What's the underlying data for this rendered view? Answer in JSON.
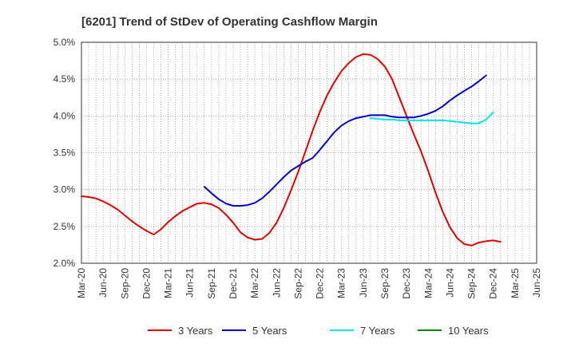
{
  "chart_data": {
    "type": "line",
    "title": "[6201]  Trend of StDev of Operating Cashflow Margin",
    "xlabel": "",
    "ylabel": "",
    "ylim": [
      2.0,
      5.0
    ],
    "y_ticks": [
      "2.0%",
      "2.5%",
      "3.0%",
      "3.5%",
      "4.0%",
      "4.5%",
      "5.0%"
    ],
    "y_tick_values": [
      2.0,
      2.5,
      3.0,
      3.5,
      4.0,
      4.5,
      5.0
    ],
    "x_ticks": [
      "Mar-20",
      "Jun-20",
      "Sep-20",
      "Dec-20",
      "Mar-21",
      "Jun-21",
      "Sep-21",
      "Dec-21",
      "Mar-22",
      "Jun-22",
      "Sep-22",
      "Dec-22",
      "Mar-23",
      "Jun-23",
      "Sep-23",
      "Dec-23",
      "Mar-24",
      "Jun-24",
      "Sep-24",
      "Dec-24",
      "Mar-25",
      "Jun-25"
    ],
    "grid": true,
    "legend_position": "bottom",
    "series": [
      {
        "name": "3 Years",
        "color": "#dd0000",
        "points": [
          [
            0,
            2.91
          ],
          [
            1,
            2.9
          ],
          [
            2,
            2.88
          ],
          [
            3,
            2.84
          ],
          [
            4,
            2.79
          ],
          [
            5,
            2.73
          ],
          [
            6,
            2.65
          ],
          [
            7,
            2.57
          ],
          [
            8,
            2.5
          ],
          [
            9,
            2.44
          ],
          [
            10,
            2.39
          ],
          [
            11,
            2.46
          ],
          [
            12,
            2.56
          ],
          [
            13,
            2.64
          ],
          [
            14,
            2.71
          ],
          [
            15,
            2.76
          ],
          [
            16,
            2.81
          ],
          [
            17,
            2.82
          ],
          [
            18,
            2.8
          ],
          [
            19,
            2.75
          ],
          [
            20,
            2.66
          ],
          [
            21,
            2.55
          ],
          [
            22,
            2.42
          ],
          [
            23,
            2.35
          ],
          [
            24,
            2.32
          ],
          [
            25,
            2.33
          ],
          [
            26,
            2.41
          ],
          [
            27,
            2.55
          ],
          [
            28,
            2.75
          ],
          [
            29,
            2.99
          ],
          [
            30,
            3.24
          ],
          [
            31,
            3.52
          ],
          [
            32,
            3.8
          ],
          [
            33,
            4.06
          ],
          [
            34,
            4.28
          ],
          [
            35,
            4.46
          ],
          [
            36,
            4.61
          ],
          [
            37,
            4.72
          ],
          [
            38,
            4.8
          ],
          [
            39,
            4.84
          ],
          [
            40,
            4.83
          ],
          [
            41,
            4.77
          ],
          [
            42,
            4.67
          ],
          [
            43,
            4.5
          ],
          [
            44,
            4.25
          ],
          [
            45,
            4.0
          ],
          [
            46,
            3.75
          ],
          [
            47,
            3.52
          ],
          [
            48,
            3.25
          ],
          [
            49,
            2.96
          ],
          [
            50,
            2.7
          ],
          [
            51,
            2.49
          ],
          [
            52,
            2.34
          ],
          [
            53,
            2.26
          ],
          [
            54,
            2.24
          ],
          [
            55,
            2.28
          ],
          [
            56,
            2.3
          ],
          [
            57,
            2.31
          ],
          [
            58,
            2.29
          ]
        ]
      },
      {
        "name": "5 Years",
        "color": "#0000cc",
        "points": [
          [
            17,
            3.04
          ],
          [
            18,
            2.95
          ],
          [
            19,
            2.87
          ],
          [
            20,
            2.81
          ],
          [
            21,
            2.78
          ],
          [
            22,
            2.78
          ],
          [
            23,
            2.79
          ],
          [
            24,
            2.82
          ],
          [
            25,
            2.88
          ],
          [
            26,
            2.97
          ],
          [
            27,
            3.07
          ],
          [
            28,
            3.17
          ],
          [
            29,
            3.26
          ],
          [
            30,
            3.32
          ],
          [
            31,
            3.38
          ],
          [
            32,
            3.43
          ],
          [
            33,
            3.54
          ],
          [
            34,
            3.66
          ],
          [
            35,
            3.78
          ],
          [
            36,
            3.87
          ],
          [
            37,
            3.93
          ],
          [
            38,
            3.97
          ],
          [
            39,
            3.99
          ],
          [
            40,
            4.01
          ],
          [
            41,
            4.01
          ],
          [
            42,
            4.01
          ],
          [
            43,
            3.99
          ],
          [
            44,
            3.98
          ],
          [
            45,
            3.98
          ],
          [
            46,
            3.98
          ],
          [
            47,
            4.0
          ],
          [
            48,
            4.03
          ],
          [
            49,
            4.07
          ],
          [
            50,
            4.13
          ],
          [
            51,
            4.21
          ],
          [
            52,
            4.28
          ],
          [
            53,
            4.34
          ],
          [
            54,
            4.4
          ],
          [
            55,
            4.47
          ],
          [
            56,
            4.55
          ]
        ]
      },
      {
        "name": "7 Years",
        "color": "#00e5e5",
        "points": [
          [
            40,
            3.97
          ],
          [
            41,
            3.96
          ],
          [
            42,
            3.95
          ],
          [
            43,
            3.95
          ],
          [
            44,
            3.94
          ],
          [
            45,
            3.94
          ],
          [
            46,
            3.94
          ],
          [
            47,
            3.94
          ],
          [
            48,
            3.94
          ],
          [
            49,
            3.94
          ],
          [
            50,
            3.94
          ],
          [
            51,
            3.93
          ],
          [
            52,
            3.92
          ],
          [
            53,
            3.91
          ],
          [
            54,
            3.9
          ],
          [
            55,
            3.9
          ],
          [
            56,
            3.95
          ],
          [
            57,
            4.05
          ]
        ]
      },
      {
        "name": "10 Years",
        "color": "#008800",
        "points": []
      }
    ]
  }
}
